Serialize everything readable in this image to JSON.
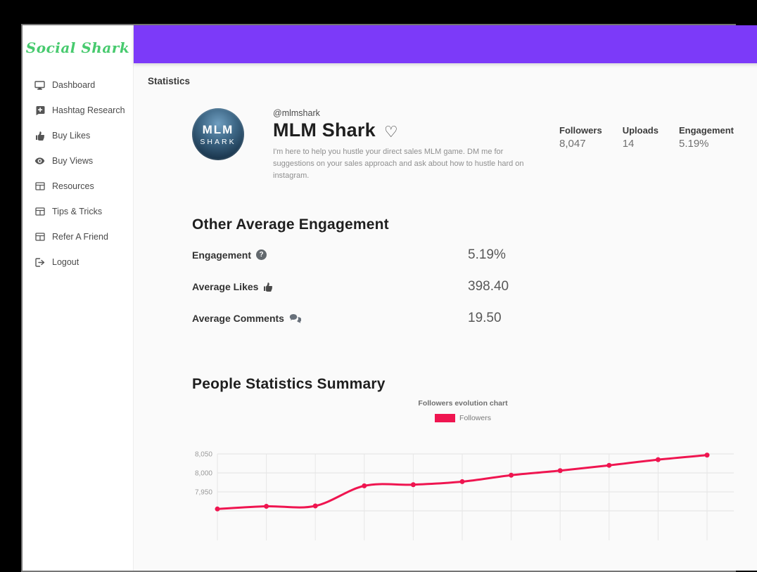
{
  "sidebar": {
    "logo": "Social Shark",
    "items": [
      {
        "label": "Dashboard"
      },
      {
        "label": "Hashtag Research"
      },
      {
        "label": "Buy Likes"
      },
      {
        "label": "Buy Views"
      },
      {
        "label": "Resources"
      },
      {
        "label": "Tips & Tricks"
      },
      {
        "label": "Refer A Friend"
      },
      {
        "label": "Logout"
      }
    ]
  },
  "header": {
    "background": "#7c3af9"
  },
  "page": {
    "breadcrumb": "Statistics"
  },
  "profile": {
    "handle": "@mlmshark",
    "name": "MLM Shark",
    "avatar_line1": "MLM",
    "avatar_line2": "SHARK",
    "bio": "I'm here to help you hustle your direct sales MLM game. DM me for suggestions on your sales approach and ask about how to hustle hard on instagram.",
    "stats": [
      {
        "label": "Followers",
        "value": "8,047"
      },
      {
        "label": "Uploads",
        "value": "14"
      },
      {
        "label": "Engagement",
        "value": "5.19%"
      }
    ]
  },
  "engagement_section": {
    "title": "Other Average Engagement",
    "rows": [
      {
        "label": "Engagement",
        "value": "5.19%"
      },
      {
        "label": "Average Likes",
        "value": "398.40"
      },
      {
        "label": "Average Comments",
        "value": "19.50"
      }
    ]
  },
  "people_section": {
    "title": "People Statistics Summary"
  },
  "chart_data": {
    "type": "line",
    "title": "Followers evolution chart",
    "legend": [
      {
        "label": "Followers",
        "color": "#ef1550"
      }
    ],
    "series": [
      {
        "name": "Followers",
        "values": [
          7905,
          7912,
          7913,
          7966,
          7969,
          7977,
          7994,
          8006,
          8020,
          8035,
          8047
        ]
      }
    ],
    "y_ticks": [
      "7,950",
      "8,000",
      "8,050"
    ],
    "ylim": [
      7900,
      8060
    ],
    "grid": true,
    "line_color": "#ef1550",
    "x_tick_labels_visible": false
  }
}
